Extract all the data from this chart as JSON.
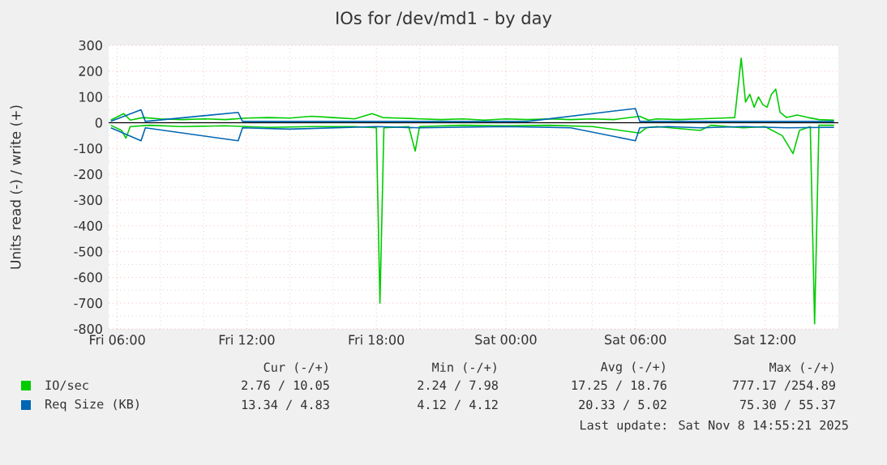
{
  "chart_data": {
    "type": "line",
    "title": "IOs for /dev/md1 - by day",
    "ylabel": "Units read (-) / write (+)",
    "xlim": [
      "2025-11-07T05:36",
      "2025-11-08T15:24"
    ],
    "ylim": [
      -800,
      300
    ],
    "xticks": [
      {
        "value": "2025-11-07T06:00",
        "label": "Fri 06:00"
      },
      {
        "value": "2025-11-07T12:00",
        "label": "Fri 12:00"
      },
      {
        "value": "2025-11-07T18:00",
        "label": "Fri 18:00"
      },
      {
        "value": "2025-11-08T00:00",
        "label": "Sat 00:00"
      },
      {
        "value": "2025-11-08T06:00",
        "label": "Sat 06:00"
      },
      {
        "value": "2025-11-08T12:00",
        "label": "Sat 12:00"
      }
    ],
    "yticks": [
      -800,
      -700,
      -600,
      -500,
      -400,
      -300,
      -200,
      -100,
      0,
      100,
      200,
      300
    ],
    "grid": true,
    "legend": "bottom",
    "marker": "none",
    "line_style": "solid",
    "series": [
      {
        "name": "IO/sec",
        "color": "#00cc00",
        "x": [
          "2025-11-07T05:42",
          "2025-11-07T06:18",
          "2025-11-07T06:36",
          "2025-11-07T07:12",
          "2025-11-07T08:00",
          "2025-11-07T09:00",
          "2025-11-07T10:00",
          "2025-11-07T11:00",
          "2025-11-07T12:00",
          "2025-11-07T13:00",
          "2025-11-07T14:00",
          "2025-11-07T15:00",
          "2025-11-07T16:00",
          "2025-11-07T17:00",
          "2025-11-07T17:48",
          "2025-11-07T18:18",
          "2025-11-07T19:00",
          "2025-11-07T20:00",
          "2025-11-07T21:00",
          "2025-11-07T22:00",
          "2025-11-07T23:00",
          "2025-11-08T00:00",
          "2025-11-08T01:00",
          "2025-11-08T02:00",
          "2025-11-08T03:00",
          "2025-11-08T04:00",
          "2025-11-08T05:00",
          "2025-11-08T06:12",
          "2025-11-08T06:36",
          "2025-11-08T07:00",
          "2025-11-08T08:00",
          "2025-11-08T09:00",
          "2025-11-08T10:00",
          "2025-11-08T10:36",
          "2025-11-08T10:54",
          "2025-11-08T11:06",
          "2025-11-08T11:18",
          "2025-11-08T11:30",
          "2025-11-08T11:42",
          "2025-11-08T11:54",
          "2025-11-08T12:06",
          "2025-11-08T12:18",
          "2025-11-08T12:30",
          "2025-11-08T12:42",
          "2025-11-08T13:00",
          "2025-11-08T13:30",
          "2025-11-08T14:00",
          "2025-11-08T14:30",
          "2025-11-08T15:12"
        ],
        "values": [
          10,
          35,
          10,
          20,
          15,
          12,
          15,
          12,
          18,
          20,
          18,
          25,
          20,
          15,
          35,
          20,
          18,
          15,
          12,
          15,
          10,
          15,
          12,
          15,
          12,
          15,
          12,
          25,
          10,
          15,
          12,
          15,
          18,
          20,
          250,
          80,
          110,
          60,
          100,
          70,
          60,
          110,
          130,
          40,
          20,
          30,
          20,
          12,
          10
        ]
      },
      {
        "color": "#00cc00",
        "x": [
          "2025-11-07T05:42",
          "2025-11-07T06:12",
          "2025-11-07T06:24",
          "2025-11-07T06:36",
          "2025-11-07T07:30",
          "2025-11-07T09:00",
          "2025-11-07T11:00",
          "2025-11-07T13:00",
          "2025-11-07T15:00",
          "2025-11-07T17:00",
          "2025-11-07T18:00",
          "2025-11-07T18:10",
          "2025-11-07T18:21",
          "2025-11-07T19:30",
          "2025-11-07T19:48",
          "2025-11-07T20:00",
          "2025-11-07T22:00",
          "2025-11-08T00:00",
          "2025-11-08T02:00",
          "2025-11-08T04:00",
          "2025-11-08T06:12",
          "2025-11-08T06:30",
          "2025-11-08T07:00",
          "2025-11-08T09:00",
          "2025-11-08T09:30",
          "2025-11-08T11:00",
          "2025-11-08T12:00",
          "2025-11-08T12:48",
          "2025-11-08T13:18",
          "2025-11-08T13:36",
          "2025-11-08T14:06",
          "2025-11-08T14:18",
          "2025-11-08T14:30",
          "2025-11-08T15:12"
        ],
        "values": [
          -10,
          -30,
          -60,
          -15,
          -10,
          -15,
          -12,
          -18,
          -15,
          -15,
          -20,
          -700,
          -20,
          -15,
          -110,
          -15,
          -10,
          -12,
          -10,
          -15,
          -40,
          -20,
          -15,
          -30,
          -10,
          -20,
          -15,
          -50,
          -120,
          -30,
          -15,
          -780,
          -10,
          -10
        ]
      },
      {
        "name": "Req Size (KB)",
        "color": "#0066b3",
        "x": [
          "2025-11-07T05:42",
          "2025-11-07T07:06",
          "2025-11-07T07:18",
          "2025-11-07T11:36",
          "2025-11-07T11:48",
          "2025-11-07T14:00",
          "2025-11-07T20:00",
          "2025-11-08T01:00",
          "2025-11-08T06:00",
          "2025-11-08T06:12",
          "2025-11-08T11:00",
          "2025-11-08T15:12"
        ],
        "values": [
          5,
          50,
          5,
          40,
          5,
          5,
          5,
          5,
          55,
          5,
          5,
          5
        ]
      },
      {
        "color": "#0066b3",
        "x": [
          "2025-11-07T05:42",
          "2025-11-07T07:06",
          "2025-11-07T07:18",
          "2025-11-07T11:36",
          "2025-11-07T11:48",
          "2025-11-07T14:00",
          "2025-11-07T18:00",
          "2025-11-07T20:00",
          "2025-11-08T00:00",
          "2025-11-08T03:00",
          "2025-11-08T06:00",
          "2025-11-08T06:12",
          "2025-11-08T07:30",
          "2025-11-08T09:00",
          "2025-11-08T11:00",
          "2025-11-08T13:00",
          "2025-11-08T15:12"
        ],
        "values": [
          -20,
          -70,
          -20,
          -70,
          -20,
          -25,
          -15,
          -20,
          -15,
          -20,
          -70,
          -20,
          -15,
          -20,
          -15,
          -20,
          -18
        ]
      }
    ],
    "ref_lines": [
      {
        "axis": "y",
        "value": 0,
        "color": "#000000"
      }
    ],
    "annotations": [
      "Cur (-/+)",
      "Min (-/+)",
      "Avg (-/+)",
      "Max (-/+)",
      "2.76 / 10.05",
      "2.24 / 7.98",
      "17.25 / 18.76",
      "777.17 /254.89",
      "13.34 / 4.83",
      "4.12 / 4.12",
      "20.33 / 5.02",
      "75.30 / 55.37",
      "Last update: Sat Nov 8 14:55:21 2025"
    ]
  }
}
